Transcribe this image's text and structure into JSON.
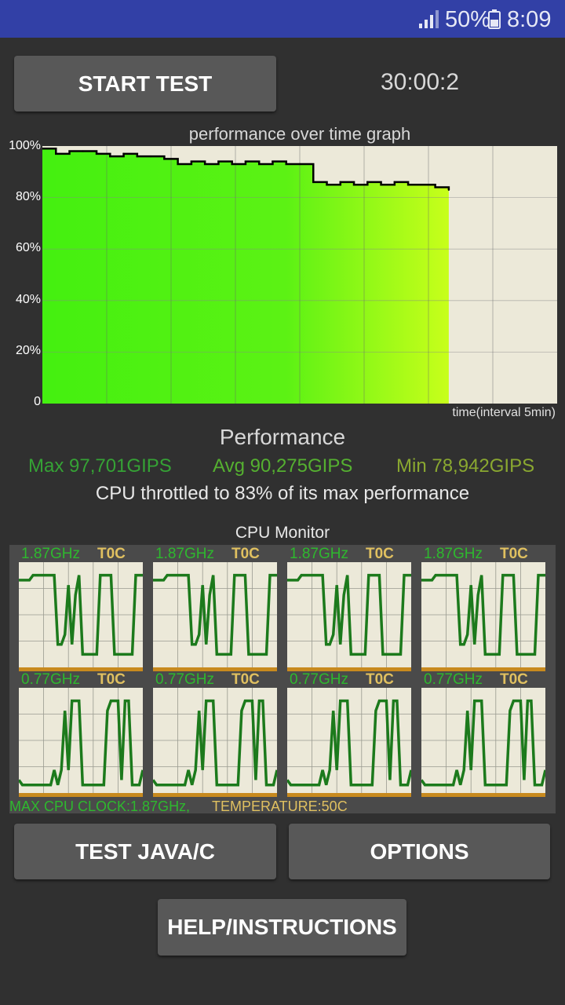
{
  "status_bar": {
    "battery_percent": "50%",
    "time": "8:09",
    "icons": [
      "signal-icon",
      "battery-icon"
    ]
  },
  "controls": {
    "start_test_label": "START TEST",
    "timer": "30:00:2",
    "test_java_c_label": "TEST JAVA/C",
    "options_label": "OPTIONS",
    "help_label": "HELP/INSTRUCTIONS"
  },
  "graph": {
    "title": "performance over time graph",
    "xlabel": "time(interval 5min)",
    "yticks": [
      "100%",
      "80%",
      "60%",
      "40%",
      "20%",
      "0"
    ]
  },
  "chart_data": {
    "type": "area",
    "title": "performance over time graph",
    "xlabel": "time(interval 5min)",
    "ylabel": "",
    "ylim": [
      0,
      100
    ],
    "xlim": [
      0,
      38
    ],
    "grid": true,
    "x": [
      0,
      1,
      2,
      3,
      4,
      5,
      6,
      7,
      8,
      9,
      10,
      11,
      12,
      13,
      14,
      15,
      16,
      17,
      18,
      19,
      20,
      21,
      22,
      23,
      24,
      25,
      26,
      27,
      28,
      29,
      30
    ],
    "values": [
      99,
      97,
      98,
      98,
      97,
      96,
      97,
      96,
      96,
      95,
      93,
      94,
      93,
      94,
      93,
      94,
      93,
      94,
      93,
      93,
      86,
      85,
      86,
      85,
      86,
      85,
      86,
      85,
      85,
      84,
      83
    ],
    "colors": {
      "fill_start": "#44f010",
      "fill_end": "#c8ff1a",
      "line": "#000000",
      "background": "#ece9d9"
    }
  },
  "performance": {
    "heading": "Performance",
    "max": "Max 97,701GIPS",
    "avg": "Avg 90,275GIPS",
    "min": "Min 78,942GIPS",
    "throttle_text": "CPU throttled to 83% of its max performance",
    "colors": {
      "max": "#35a235",
      "avg": "#55b030",
      "min": "#8aa830"
    }
  },
  "cpu_monitor": {
    "title": "CPU Monitor",
    "cores": [
      {
        "freq": "1.87GHz",
        "temp": "T0C",
        "trace": [
          85,
          85,
          85,
          85,
          90,
          90,
          90,
          90,
          90,
          90,
          90,
          20,
          20,
          30,
          80,
          20,
          70,
          90,
          10,
          10,
          10,
          10,
          10,
          90,
          90,
          90,
          90,
          10,
          10,
          10,
          10,
          10,
          10,
          90,
          90,
          90
        ]
      },
      {
        "freq": "1.87GHz",
        "temp": "T0C",
        "trace": [
          85,
          85,
          85,
          85,
          90,
          90,
          90,
          90,
          90,
          90,
          90,
          20,
          20,
          30,
          80,
          20,
          70,
          90,
          10,
          10,
          10,
          10,
          10,
          90,
          90,
          90,
          90,
          10,
          10,
          10,
          10,
          10,
          10,
          90,
          90,
          90
        ]
      },
      {
        "freq": "1.87GHz",
        "temp": "T0C",
        "trace": [
          85,
          85,
          85,
          85,
          90,
          90,
          90,
          90,
          90,
          90,
          90,
          20,
          20,
          30,
          80,
          20,
          70,
          90,
          10,
          10,
          10,
          10,
          10,
          90,
          90,
          90,
          90,
          10,
          10,
          10,
          10,
          10,
          10,
          90,
          90,
          90
        ]
      },
      {
        "freq": "1.87GHz",
        "temp": "T0C",
        "trace": [
          85,
          85,
          85,
          85,
          90,
          90,
          90,
          90,
          90,
          90,
          90,
          20,
          20,
          30,
          80,
          20,
          70,
          90,
          10,
          10,
          10,
          10,
          10,
          90,
          90,
          90,
          90,
          10,
          10,
          10,
          10,
          10,
          10,
          90,
          90,
          90
        ]
      },
      {
        "freq": "0.77GHz",
        "temp": "T0C",
        "trace": [
          10,
          5,
          5,
          5,
          5,
          5,
          5,
          5,
          5,
          5,
          20,
          5,
          20,
          80,
          20,
          90,
          90,
          90,
          5,
          5,
          5,
          5,
          5,
          5,
          5,
          80,
          90,
          90,
          90,
          10,
          90,
          90,
          5,
          5,
          5,
          20
        ]
      },
      {
        "freq": "0.77GHz",
        "temp": "T0C",
        "trace": [
          10,
          5,
          5,
          5,
          5,
          5,
          5,
          5,
          5,
          5,
          20,
          5,
          20,
          80,
          20,
          90,
          90,
          90,
          5,
          5,
          5,
          5,
          5,
          5,
          5,
          80,
          90,
          90,
          90,
          10,
          90,
          90,
          5,
          5,
          5,
          20
        ]
      },
      {
        "freq": "0.77GHz",
        "temp": "T0C",
        "trace": [
          10,
          5,
          5,
          5,
          5,
          5,
          5,
          5,
          5,
          5,
          20,
          5,
          20,
          80,
          20,
          90,
          90,
          90,
          5,
          5,
          5,
          5,
          5,
          5,
          5,
          80,
          90,
          90,
          90,
          10,
          90,
          90,
          5,
          5,
          5,
          20
        ]
      },
      {
        "freq": "0.77GHz",
        "temp": "T0C",
        "trace": [
          10,
          5,
          5,
          5,
          5,
          5,
          5,
          5,
          5,
          5,
          20,
          5,
          20,
          80,
          20,
          90,
          90,
          90,
          5,
          5,
          5,
          5,
          5,
          5,
          5,
          80,
          90,
          90,
          90,
          10,
          90,
          90,
          5,
          5,
          5,
          20
        ]
      }
    ],
    "max_cpu_clock": "MAX CPU CLOCK:1.87GHz,",
    "temperature": "TEMPERATURE:50C"
  }
}
